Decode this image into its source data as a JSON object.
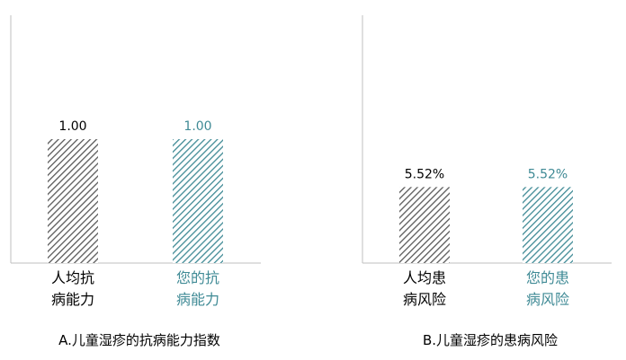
{
  "chart_data": [
    {
      "type": "bar",
      "title": "A.儿童湿疹的抗病能力指数",
      "categories": [
        "人均抗病能力",
        "您的抗病能力"
      ],
      "values": [
        1.0,
        1.0
      ],
      "value_labels": [
        "1.00",
        "1.00"
      ],
      "colors": [
        "#595959",
        "#3f8a95"
      ],
      "ylim": [
        0,
        2
      ]
    },
    {
      "type": "bar",
      "title": "B.儿童湿疹的患病风险",
      "categories": [
        "人均患病风险",
        "您的患病风险"
      ],
      "values": [
        5.52,
        5.52
      ],
      "value_labels": [
        "5.52%",
        "5.52%"
      ],
      "colors": [
        "#595959",
        "#3f8a95"
      ],
      "ylim": [
        0,
        18
      ]
    }
  ]
}
